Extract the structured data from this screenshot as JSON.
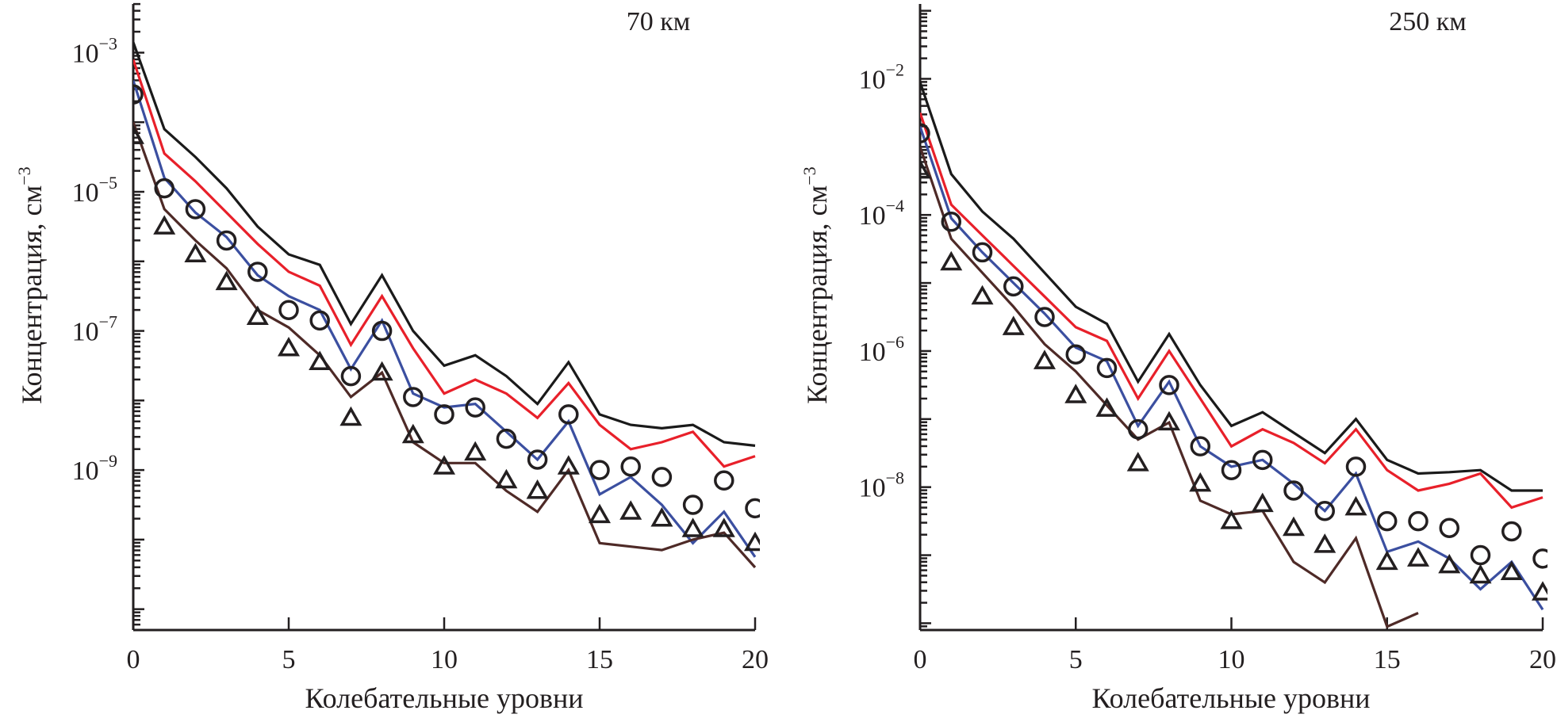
{
  "chart_data": [
    {
      "type": "line",
      "title": "70 км",
      "xlabel": "Колебательные уровни",
      "ylabel": "Концентрация, см",
      "ylabel_exponent": "−3",
      "yscale": "log",
      "xlim": [
        0,
        20
      ],
      "ylim_log10": [
        -11.3,
        -2.3
      ],
      "x_ticks": [
        0,
        5,
        10,
        15,
        20
      ],
      "y_tick_labels": [
        {
          "base": "10",
          "exp": "−3",
          "log10": -3
        },
        {
          "base": "10",
          "exp": "−5",
          "log10": -5
        },
        {
          "base": "10",
          "exp": "−7",
          "log10": -7
        },
        {
          "base": "10",
          "exp": "−9",
          "log10": -9
        }
      ],
      "grid": false,
      "x": [
        0,
        1,
        2,
        3,
        4,
        5,
        6,
        7,
        8,
        9,
        10,
        11,
        12,
        13,
        14,
        15,
        16,
        17,
        18,
        19,
        20
      ],
      "series": [
        {
          "name": "black-line",
          "kind": "line",
          "color": "#1a1a1a",
          "log10_values": [
            -2.85,
            -4.1,
            -4.5,
            -4.95,
            -5.5,
            -5.9,
            -6.05,
            -6.9,
            -6.2,
            -7.0,
            -7.5,
            -7.35,
            -7.65,
            -8.05,
            -7.45,
            -8.2,
            -8.35,
            -8.4,
            -8.35,
            -8.6,
            -8.65
          ]
        },
        {
          "name": "red-line",
          "kind": "line",
          "color": "#e8202a",
          "log10_values": [
            -3.1,
            -4.45,
            -4.85,
            -5.3,
            -5.75,
            -6.15,
            -6.35,
            -7.2,
            -6.5,
            -7.25,
            -7.9,
            -7.7,
            -7.9,
            -8.25,
            -7.75,
            -8.35,
            -8.7,
            -8.6,
            -8.45,
            -8.95,
            -8.8
          ]
        },
        {
          "name": "blue-line",
          "kind": "line",
          "color": "#3b4fa0",
          "log10_values": [
            -3.4,
            -4.8,
            -5.3,
            -5.65,
            -6.2,
            -6.5,
            -6.7,
            -7.55,
            -6.85,
            -7.9,
            -8.1,
            -8.05,
            -8.45,
            -8.85,
            -8.3,
            -9.35,
            -9.1,
            -9.5,
            -10.05,
            -9.6,
            -10.25
          ]
        },
        {
          "name": "brown-line",
          "kind": "line",
          "color": "#4e2a27",
          "log10_values": [
            -4.0,
            -5.25,
            -5.7,
            -6.1,
            -6.7,
            -6.95,
            -7.35,
            -7.95,
            -7.6,
            -8.6,
            -8.9,
            -8.9,
            -9.3,
            -9.6,
            -9.0,
            -10.05,
            -10.1,
            -10.15,
            -10.0,
            -9.9,
            -10.4
          ]
        },
        {
          "name": "circle-markers",
          "kind": "circle",
          "color": "#231f20",
          "log10_values": [
            -3.6,
            -4.95,
            -5.25,
            -5.7,
            -6.15,
            -6.7,
            -6.85,
            -7.65,
            -7.0,
            -7.95,
            -8.2,
            -8.1,
            -8.55,
            -8.85,
            -8.2,
            -9.0,
            -8.95,
            -9.1,
            -9.5,
            -9.15,
            -9.55
          ]
        },
        {
          "name": "triangle-markers",
          "kind": "triangle",
          "color": "#231f20",
          "log10_values": [
            -4.2,
            -5.5,
            -5.9,
            -6.3,
            -6.8,
            -7.25,
            -7.45,
            -8.25,
            -7.6,
            -8.5,
            -8.95,
            -8.75,
            -9.15,
            -9.3,
            -8.95,
            -9.65,
            -9.6,
            -9.7,
            -9.85,
            -9.85,
            -10.05
          ]
        }
      ]
    },
    {
      "type": "line",
      "title": "250 км",
      "xlabel": "Колебательные уровни",
      "ylabel": "Концентрация, см",
      "ylabel_exponent": "−3",
      "yscale": "log",
      "xlim": [
        0,
        20
      ],
      "ylim_log10": [
        -10.1,
        -0.9
      ],
      "x_ticks": [
        0,
        5,
        10,
        15,
        20
      ],
      "y_tick_labels": [
        {
          "base": "10",
          "exp": "−2",
          "log10": -2
        },
        {
          "base": "10",
          "exp": "−4",
          "log10": -4
        },
        {
          "base": "10",
          "exp": "−6",
          "log10": -6
        },
        {
          "base": "10",
          "exp": "−8",
          "log10": -8
        }
      ],
      "grid": false,
      "x": [
        0,
        1,
        2,
        3,
        4,
        5,
        6,
        7,
        8,
        9,
        10,
        11,
        12,
        13,
        14,
        15,
        16,
        17,
        18,
        19,
        20
      ],
      "series": [
        {
          "name": "black-line",
          "kind": "line",
          "color": "#1a1a1a",
          "log10_values": [
            -2.05,
            -3.4,
            -3.95,
            -4.35,
            -4.85,
            -5.35,
            -5.6,
            -6.45,
            -5.75,
            -6.5,
            -7.1,
            -6.9,
            -7.2,
            -7.5,
            -7.0,
            -7.6,
            -7.8,
            -7.78,
            -7.75,
            -8.05,
            -8.05
          ]
        },
        {
          "name": "red-line",
          "kind": "line",
          "color": "#e8202a",
          "log10_values": [
            -2.5,
            -3.85,
            -4.3,
            -4.75,
            -5.2,
            -5.65,
            -5.85,
            -6.7,
            -6.0,
            -6.7,
            -7.4,
            -7.15,
            -7.35,
            -7.65,
            -7.15,
            -7.75,
            -8.05,
            -7.95,
            -7.8,
            -8.3,
            -8.15
          ]
        },
        {
          "name": "blue-line",
          "kind": "line",
          "color": "#3b4fa0",
          "log10_values": [
            -2.7,
            -4.05,
            -4.55,
            -5.0,
            -5.45,
            -5.95,
            -6.15,
            -7.1,
            -6.45,
            -7.4,
            -7.7,
            -7.6,
            -7.95,
            -8.35,
            -7.8,
            -8.95,
            -8.8,
            -9.05,
            -9.5,
            -9.1,
            -9.8
          ]
        },
        {
          "name": "brown-line",
          "kind": "line",
          "color": "#4e2a27",
          "log10_values": [
            -3.0,
            -4.35,
            -4.85,
            -5.35,
            -5.9,
            -6.3,
            -6.8,
            -7.3,
            -7.05,
            -8.2,
            -8.4,
            -8.35,
            -9.1,
            -9.4,
            -8.75,
            -10.05,
            -9.85
          ]
        },
        {
          "name": "circle-markers",
          "kind": "circle",
          "color": "#231f20",
          "log10_values": [
            -2.8,
            -4.1,
            -4.55,
            -5.05,
            -5.5,
            -6.05,
            -6.25,
            -7.15,
            -6.5,
            -7.4,
            -7.75,
            -7.6,
            -8.05,
            -8.35,
            -7.7,
            -8.5,
            -8.5,
            -8.6,
            -9.0,
            -8.65,
            -9.05
          ]
        },
        {
          "name": "triangle-markers",
          "kind": "triangle",
          "color": "#231f20",
          "log10_values": [
            -3.35,
            -4.7,
            -5.2,
            -5.65,
            -6.15,
            -6.65,
            -6.85,
            -7.65,
            -7.05,
            -7.95,
            -8.5,
            -8.25,
            -8.6,
            -8.85,
            -8.3,
            -9.1,
            -9.05,
            -9.15,
            -9.3,
            -9.25,
            -9.55
          ]
        }
      ]
    }
  ]
}
